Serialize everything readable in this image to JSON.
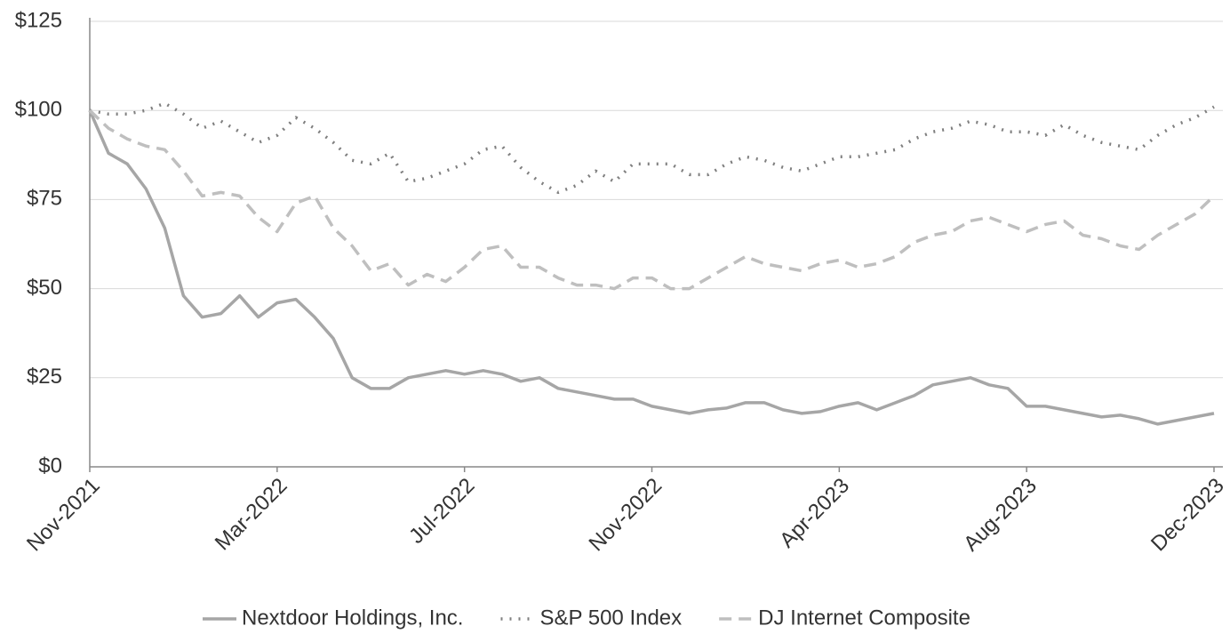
{
  "chart_data": {
    "type": "line",
    "categories": [
      "Nov-2021",
      null,
      null,
      null,
      null,
      null,
      null,
      null,
      null,
      null,
      "Mar-2022",
      null,
      null,
      null,
      null,
      null,
      null,
      null,
      null,
      null,
      "Jul-2022",
      null,
      null,
      null,
      null,
      null,
      null,
      null,
      null,
      null,
      "Nov-2022",
      null,
      null,
      null,
      null,
      null,
      null,
      null,
      null,
      null,
      "Apr-2023",
      null,
      null,
      null,
      null,
      null,
      null,
      null,
      null,
      null,
      "Aug-2023",
      null,
      null,
      null,
      null,
      null,
      null,
      null,
      null,
      null,
      "Dec-2023"
    ],
    "series": [
      {
        "name": "Nextdoor Holdings, Inc.",
        "color": "#a6a6a6",
        "style": "solid",
        "values": [
          100,
          88,
          85,
          78,
          67,
          48,
          42,
          43,
          48,
          42,
          46,
          47,
          42,
          36,
          25,
          22,
          22,
          25,
          26,
          27,
          26,
          27,
          26,
          24,
          25,
          22,
          21,
          20,
          19,
          19,
          17,
          16,
          15,
          16,
          16.5,
          18,
          18,
          16,
          15,
          15.5,
          17,
          18,
          16,
          18,
          20,
          23,
          24,
          25,
          23,
          22,
          17,
          17,
          16,
          15,
          14,
          14.5,
          13.5,
          12,
          13,
          14,
          15
        ]
      },
      {
        "name": "S&P 500 Index",
        "color": "#7f7f7f",
        "style": "dotted",
        "values": [
          100,
          99,
          99,
          100,
          102,
          99,
          95,
          97,
          94,
          91,
          93,
          98,
          95,
          91,
          86,
          85,
          88,
          80,
          81,
          83,
          85,
          89,
          90,
          84,
          80,
          77,
          79,
          83,
          80,
          85,
          85,
          85,
          82,
          82,
          85,
          87,
          86,
          84,
          83,
          85,
          87,
          87,
          88,
          89,
          92,
          94,
          95,
          97,
          96,
          94,
          94,
          93,
          96,
          93,
          91,
          90,
          89,
          93,
          96,
          98,
          101
        ]
      },
      {
        "name": "DJ Internet Composite",
        "color": "#bfbfbf",
        "style": "dashed",
        "values": [
          100,
          95,
          92,
          90,
          89,
          83,
          76,
          77,
          76,
          70,
          66,
          74,
          76,
          67,
          62,
          55,
          57,
          51,
          54,
          52,
          56,
          61,
          62,
          56,
          56,
          53,
          51,
          51,
          50,
          53,
          53,
          50,
          50,
          53,
          56,
          59,
          57,
          56,
          55,
          57,
          58,
          56,
          57,
          59,
          63,
          65,
          66,
          69,
          70,
          68,
          66,
          68,
          69,
          65,
          64,
          62,
          61,
          65,
          68,
          71,
          76
        ]
      }
    ],
    "ylim": [
      0,
      125
    ],
    "yticks": [
      {
        "value": 0,
        "label": "$0"
      },
      {
        "value": 25,
        "label": "$25"
      },
      {
        "value": 50,
        "label": "$50"
      },
      {
        "value": 75,
        "label": "$75"
      },
      {
        "value": 100,
        "label": "$100"
      },
      {
        "value": 125,
        "label": "$125"
      }
    ],
    "grid": true,
    "legend": "bottom"
  }
}
